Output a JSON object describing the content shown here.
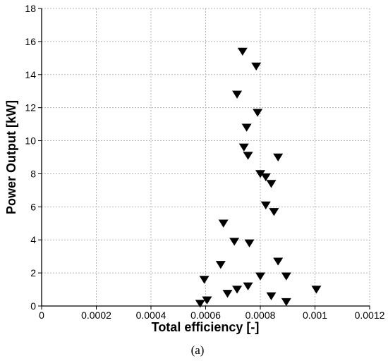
{
  "chart_data": {
    "type": "scatter",
    "xlabel": "Total efficiency [-]",
    "ylabel": "Power Output [kW]",
    "caption": "(a)",
    "xlim": [
      0,
      0.0012
    ],
    "ylim": [
      0,
      18
    ],
    "grid": true,
    "marker": "triangle-down",
    "x_ticks": [
      "0",
      "0.0002",
      "0.0004",
      "0.0006",
      "0.0008",
      "0.001",
      "0.0012"
    ],
    "y_ticks": [
      "0",
      "2",
      "4",
      "6",
      "8",
      "10",
      "12",
      "14",
      "16",
      "18"
    ],
    "points": [
      {
        "x": 0.000735,
        "y": 15.4
      },
      {
        "x": 0.000785,
        "y": 14.5
      },
      {
        "x": 0.000715,
        "y": 12.8
      },
      {
        "x": 0.00079,
        "y": 11.7
      },
      {
        "x": 0.00075,
        "y": 10.8
      },
      {
        "x": 0.00074,
        "y": 9.6
      },
      {
        "x": 0.000755,
        "y": 9.1
      },
      {
        "x": 0.000865,
        "y": 9.0
      },
      {
        "x": 0.0008,
        "y": 8.0
      },
      {
        "x": 0.00082,
        "y": 7.8
      },
      {
        "x": 0.00084,
        "y": 7.4
      },
      {
        "x": 0.00082,
        "y": 6.1
      },
      {
        "x": 0.00085,
        "y": 5.7
      },
      {
        "x": 0.000665,
        "y": 5.0
      },
      {
        "x": 0.000705,
        "y": 3.9
      },
      {
        "x": 0.00076,
        "y": 3.8
      },
      {
        "x": 0.000865,
        "y": 2.7
      },
      {
        "x": 0.000655,
        "y": 2.5
      },
      {
        "x": 0.000595,
        "y": 1.6
      },
      {
        "x": 0.0008,
        "y": 1.8
      },
      {
        "x": 0.000895,
        "y": 1.8
      },
      {
        "x": 0.001005,
        "y": 1.0
      },
      {
        "x": 0.000755,
        "y": 1.2
      },
      {
        "x": 0.000715,
        "y": 1.0
      },
      {
        "x": 0.00068,
        "y": 0.75
      },
      {
        "x": 0.00084,
        "y": 0.6
      },
      {
        "x": 0.000605,
        "y": 0.35
      },
      {
        "x": 0.000895,
        "y": 0.25
      },
      {
        "x": 0.00058,
        "y": 0.15
      }
    ]
  }
}
